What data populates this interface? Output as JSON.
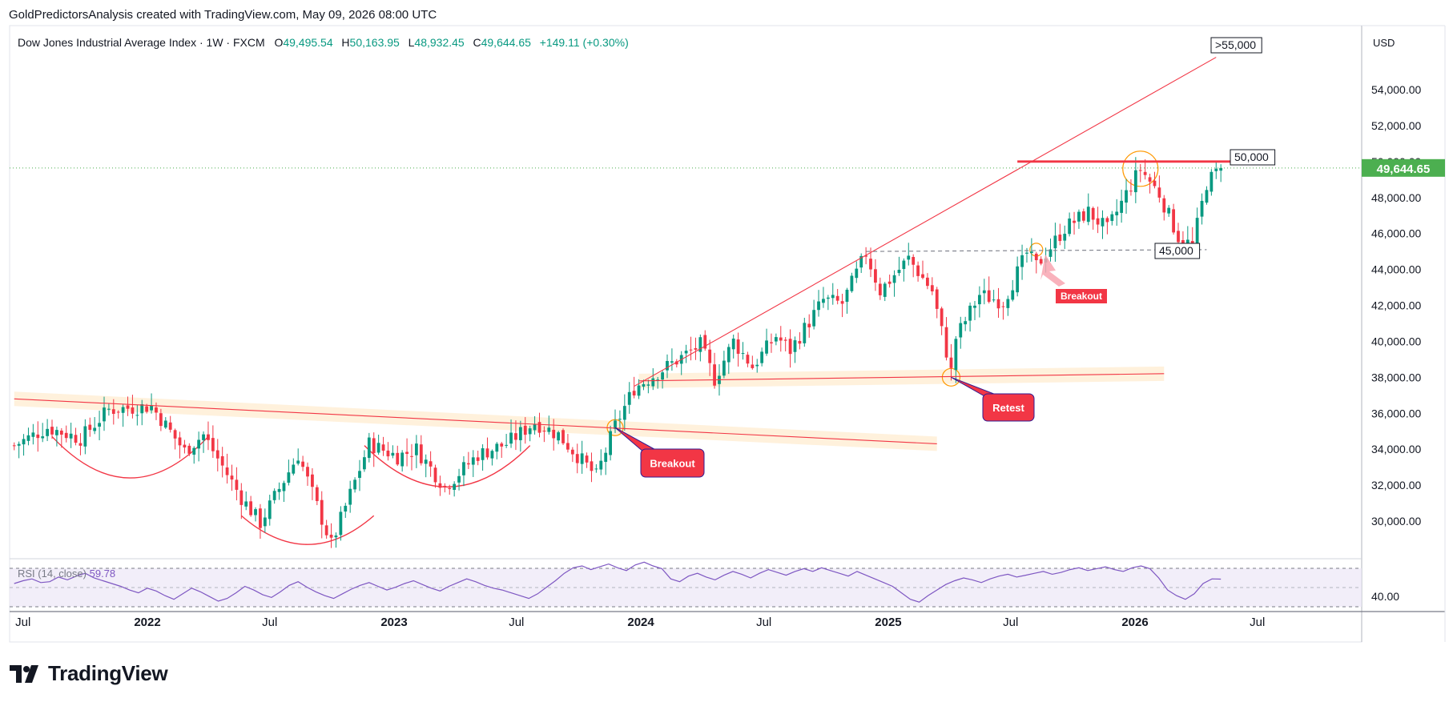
{
  "caption": "GoldPredictorsAnalysis created with TradingView.com, May 09, 2026 08:00 UTC",
  "legend": {
    "symbol": "Dow Jones Industrial Average Index · 1W · FXCM",
    "open_label": "O",
    "open": "49,495.54",
    "high_label": "H",
    "high": "50,163.95",
    "low_label": "L",
    "low": "48,932.45",
    "close_label": "C",
    "close": "49,644.65",
    "change": "+149.11 (+0.30%)"
  },
  "currency": "USD",
  "last_price": "49,644.65",
  "rsi": {
    "label": "RSI (14, close)",
    "value": "59.78",
    "axis_label": "40.00"
  },
  "brand": "TradingView",
  "colors": {
    "up": "#089981",
    "down": "#f23645",
    "trend": "#f23645",
    "orange": "#ff9800",
    "rsi": "#7e57c2",
    "accent_green": "#4caf50"
  },
  "annotations": {
    "target_55000": ">55,000",
    "level_50000": "50,000",
    "level_45000": "45,000",
    "breakout_1": "Breakout",
    "retest": "Retest",
    "breakout_2": "Breakout"
  },
  "chart_data": {
    "type": "candlestick",
    "title": "Dow Jones Industrial Average Index · 1W · FXCM",
    "ylim": [
      28000,
      56000
    ],
    "y_ticks": [
      "54,000.00",
      "52,000.00",
      "50,000.00",
      "48,000.00",
      "46,000.00",
      "44,000.00",
      "42,000.00",
      "40,000.00",
      "38,000.00",
      "36,000.00",
      "34,000.00",
      "32,000.00",
      "30,000.00"
    ],
    "y_tick_values": [
      54000,
      52000,
      50000,
      48000,
      46000,
      44000,
      42000,
      40000,
      38000,
      36000,
      34000,
      32000,
      30000
    ],
    "x_ticks": [
      "Jul",
      "2022",
      "Jul",
      "2023",
      "Jul",
      "2024",
      "Jul",
      "2025",
      "Jul",
      "2026",
      "Jul"
    ],
    "x_tick_dates": [
      "2021-07-01",
      "2022-01-01",
      "2022-07-01",
      "2023-01-01",
      "2023-07-01",
      "2024-01-01",
      "2024-07-01",
      "2025-01-01",
      "2025-07-01",
      "2026-01-01",
      "2026-07-01"
    ],
    "price_path": [
      [
        "2021-06-18",
        34200
      ],
      [
        "2021-08-06",
        35200
      ],
      [
        "2021-09-24",
        34600
      ],
      [
        "2021-11-05",
        36200
      ],
      [
        "2022-01-07",
        36400
      ],
      [
        "2022-02-25",
        33900
      ],
      [
        "2022-03-25",
        34800
      ],
      [
        "2022-05-20",
        31300
      ],
      [
        "2022-06-17",
        29900
      ],
      [
        "2022-08-12",
        33700
      ],
      [
        "2022-09-30",
        28700
      ],
      [
        "2022-11-25",
        34300
      ],
      [
        "2023-01-06",
        33600
      ],
      [
        "2023-02-03",
        34000
      ],
      [
        "2023-03-17",
        31900
      ],
      [
        "2023-05-05",
        33700
      ],
      [
        "2023-06-16",
        34300
      ],
      [
        "2023-07-28",
        35500
      ],
      [
        "2023-09-01",
        34800
      ],
      [
        "2023-10-27",
        32500
      ],
      [
        "2023-11-24",
        35300
      ],
      [
        "2023-12-22",
        37400
      ],
      [
        "2024-03-29",
        39800
      ],
      [
        "2024-04-19",
        37900
      ],
      [
        "2024-05-17",
        40000
      ],
      [
        "2024-06-14",
        38600
      ],
      [
        "2024-07-19",
        40300
      ],
      [
        "2024-08-09",
        39500
      ],
      [
        "2024-09-27",
        42300
      ],
      [
        "2024-10-25",
        42100
      ],
      [
        "2024-11-29",
        44900
      ],
      [
        "2024-12-20",
        42800
      ],
      [
        "2025-01-31",
        44600
      ],
      [
        "2025-03-07",
        42800
      ],
      [
        "2025-04-04",
        38300
      ],
      [
        "2025-04-11",
        40200
      ],
      [
        "2025-05-16",
        42600
      ],
      [
        "2025-06-20",
        42200
      ],
      [
        "2025-07-25",
        44900
      ],
      [
        "2025-08-08",
        44200
      ],
      [
        "2025-09-19",
        46300
      ],
      [
        "2025-10-24",
        47200
      ],
      [
        "2025-11-21",
        46200
      ],
      [
        "2025-12-26",
        48700
      ],
      [
        "2026-01-09",
        49600
      ],
      [
        "2026-02-06",
        48200
      ],
      [
        "2026-03-06",
        45800
      ],
      [
        "2026-03-27",
        45300
      ],
      [
        "2026-04-17",
        48800
      ],
      [
        "2026-05-08",
        49645
      ]
    ],
    "lines": [
      {
        "name": "descending neckline",
        "from": [
          "2021-06-18",
          36800
        ],
        "to": [
          "2025-03-14",
          34300
        ]
      },
      {
        "name": "rising trendline",
        "from": [
          "2023-12-22",
          37500
        ],
        "to": [
          "2026-05-01",
          55800
        ]
      },
      {
        "name": "support 38,000",
        "from": [
          "2023-12-29",
          37800
        ],
        "to": [
          "2026-02-13",
          38200
        ]
      },
      {
        "name": "resistance 50,000",
        "from": [
          "2025-07-11",
          50000
        ],
        "to": [
          "2026-05-29",
          50000
        ]
      },
      {
        "name": "support 45,000",
        "from": [
          "2024-11-29",
          45000
        ],
        "to": [
          "2026-04-17",
          45100
        ]
      }
    ],
    "rsi_values": [
      55,
      58,
      60,
      56,
      57,
      62,
      59,
      63,
      66,
      61,
      58,
      55,
      52,
      48,
      45,
      50,
      47,
      42,
      38,
      44,
      50,
      46,
      41,
      36,
      39,
      45,
      52,
      48,
      43,
      40,
      46,
      53,
      57,
      51,
      46,
      42,
      39,
      44,
      49,
      53,
      56,
      52,
      48,
      51,
      55,
      58,
      54,
      50,
      47,
      52,
      56,
      60,
      57,
      53,
      50,
      48,
      45,
      42,
      39,
      44,
      51,
      58,
      66,
      72,
      74,
      70,
      73,
      76,
      72,
      69,
      75,
      78,
      74,
      71,
      60,
      57,
      63,
      66,
      62,
      59,
      64,
      68,
      65,
      61,
      66,
      70,
      67,
      64,
      68,
      71,
      68,
      72,
      69,
      66,
      63,
      68,
      64,
      60,
      56,
      52,
      45,
      38,
      35,
      42,
      48,
      54,
      58,
      61,
      59,
      56,
      60,
      63,
      65,
      62,
      64,
      66,
      68,
      65,
      67,
      70,
      72,
      69,
      71,
      73,
      70,
      68,
      72,
      74,
      71,
      61,
      48,
      42,
      38,
      44,
      55,
      60,
      59.78
    ]
  }
}
